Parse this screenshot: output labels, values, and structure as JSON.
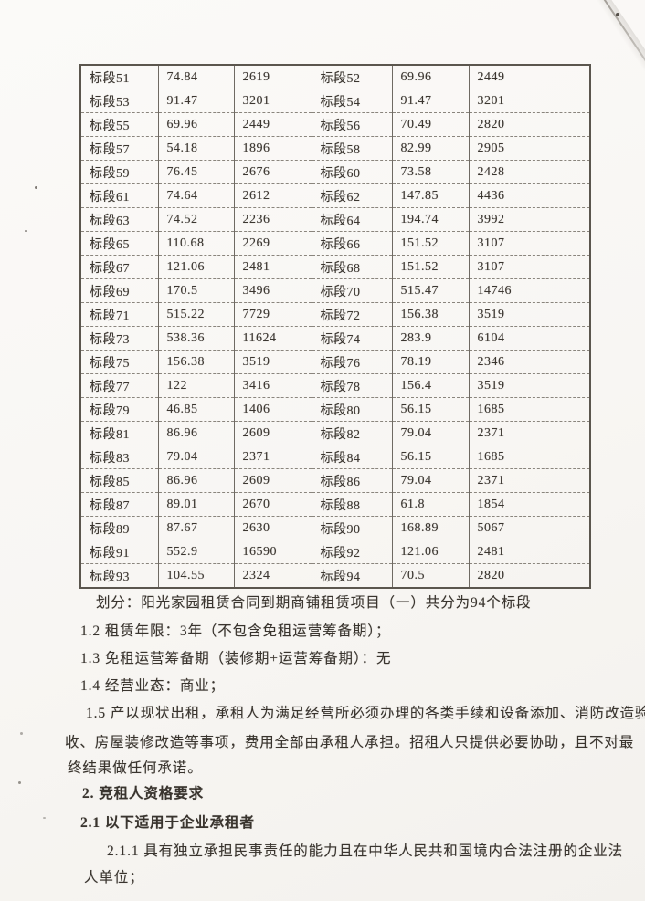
{
  "colors": {
    "paper": "#f8f6f3",
    "ink": "#39342e",
    "table_border": "#5b564e"
  },
  "table": {
    "rows": [
      [
        "标段51",
        "74.84",
        "2619",
        "标段52",
        "69.96",
        "2449"
      ],
      [
        "标段53",
        "91.47",
        "3201",
        "标段54",
        "91.47",
        "3201"
      ],
      [
        "标段55",
        "69.96",
        "2449",
        "标段56",
        "70.49",
        "2820"
      ],
      [
        "标段57",
        "54.18",
        "1896",
        "标段58",
        "82.99",
        "2905"
      ],
      [
        "标段59",
        "76.45",
        "2676",
        "标段60",
        "73.58",
        "2428"
      ],
      [
        "标段61",
        "74.64",
        "2612",
        "标段62",
        "147.85",
        "4436"
      ],
      [
        "标段63",
        "74.52",
        "2236",
        "标段64",
        "194.74",
        "3992"
      ],
      [
        "标段65",
        "110.68",
        "2269",
        "标段66",
        "151.52",
        "3107"
      ],
      [
        "标段67",
        "121.06",
        "2481",
        "标段68",
        "151.52",
        "3107"
      ],
      [
        "标段69",
        "170.5",
        "3496",
        "标段70",
        "515.47",
        "14746"
      ],
      [
        "标段71",
        "515.22",
        "7729",
        "标段72",
        "156.38",
        "3519"
      ],
      [
        "标段73",
        "538.36",
        "11624",
        "标段74",
        "283.9",
        "6104"
      ],
      [
        "标段75",
        "156.38",
        "3519",
        "标段76",
        "78.19",
        "2346"
      ],
      [
        "标段77",
        "122",
        "3416",
        "标段78",
        "156.4",
        "3519"
      ],
      [
        "标段79",
        "46.85",
        "1406",
        "标段80",
        "56.15",
        "1685"
      ],
      [
        "标段81",
        "86.96",
        "2609",
        "标段82",
        "79.04",
        "2371"
      ],
      [
        "标段83",
        "79.04",
        "2371",
        "标段84",
        "56.15",
        "1685"
      ],
      [
        "标段85",
        "86.96",
        "2609",
        "标段86",
        "79.04",
        "2371"
      ],
      [
        "标段87",
        "89.01",
        "2670",
        "标段88",
        "61.8",
        "1854"
      ],
      [
        "标段89",
        "87.67",
        "2630",
        "标段90",
        "168.89",
        "5067"
      ],
      [
        "标段91",
        "552.9",
        "16590",
        "标段92",
        "121.06",
        "2481"
      ],
      [
        "标段93",
        "104.55",
        "2324",
        "标段94",
        "70.5",
        "2820"
      ]
    ]
  },
  "text": {
    "lines": [
      "划分：阳光家园租赁合同到期商铺租赁项目（一）共分为94个标段",
      "1.2 租赁年限：3年（不包含免租运营筹备期）；",
      "1.3 免租运营筹备期（装修期+运营筹备期）：无",
      "1.4 经营业态：商业；",
      "1.5 产以现状出租，承租人为满足经营所必须办理的各类手续和设备添加、消防改造验",
      "收、房屋装修改造等事项，费用全部由承租人承担。招租人只提供必要协助，且不对最",
      "终结果做任何承诺。",
      "2. 竞租人资格要求",
      "2.1 以下适用于企业承租者",
      "2.1.1 具有独立承担民事责任的能力且在中华人民共和国境内合法注册的企业法",
      "人单位；"
    ]
  }
}
